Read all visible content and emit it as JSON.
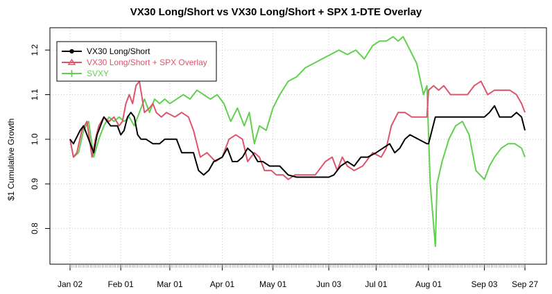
{
  "chart_data": {
    "type": "line",
    "title": "VX30 Long/Short vs VX30 Long/Short + SPX 1-DTE Overlay",
    "xlabel": "",
    "ylabel": "$1 Cumulative Growth",
    "ylim": [
      0.72,
      1.25
    ],
    "yticks": [
      0.8,
      0.9,
      1.0,
      1.1,
      1.2
    ],
    "ytick_labels": [
      "0.8",
      "0.9",
      "1.0",
      "1.1",
      "1.2"
    ],
    "xlim": [
      "2024-01-02",
      "2024-09-27"
    ],
    "xticks": [
      "2024-01-02",
      "2024-02-01",
      "2024-03-01",
      "2024-04-01",
      "2024-05-01",
      "2024-06-03",
      "2024-07-01",
      "2024-08-01",
      "2024-09-03",
      "2024-09-27"
    ],
    "xtick_labels": [
      "Jan 02",
      "Feb 01",
      "Mar 01",
      "Apr 01",
      "May 01",
      "Jun 03",
      "Jul 01",
      "Aug 01",
      "Sep 03",
      "Sep 27"
    ],
    "grid": true,
    "legend_position": "top-left",
    "series": [
      {
        "name": "VX30 Long/Short",
        "color": "#000000",
        "marker": "circle",
        "x": [
          "2024-01-02",
          "2024-01-04",
          "2024-01-08",
          "2024-01-10",
          "2024-01-12",
          "2024-01-16",
          "2024-01-18",
          "2024-01-22",
          "2024-01-24",
          "2024-01-26",
          "2024-01-30",
          "2024-02-01",
          "2024-02-03",
          "2024-02-05",
          "2024-02-07",
          "2024-02-09",
          "2024-02-11",
          "2024-02-13",
          "2024-02-16",
          "2024-02-20",
          "2024-02-24",
          "2024-02-27",
          "2024-03-05",
          "2024-03-08",
          "2024-03-12",
          "2024-03-15",
          "2024-03-18",
          "2024-03-21",
          "2024-03-24",
          "2024-03-27",
          "2024-04-01",
          "2024-04-04",
          "2024-04-07",
          "2024-04-10",
          "2024-04-13",
          "2024-04-16",
          "2024-04-19",
          "2024-04-22",
          "2024-04-25",
          "2024-04-29",
          "2024-05-01",
          "2024-05-05",
          "2024-05-10",
          "2024-05-15",
          "2024-05-20",
          "2024-05-24",
          "2024-05-28",
          "2024-05-31",
          "2024-06-03",
          "2024-06-06",
          "2024-06-10",
          "2024-06-14",
          "2024-06-18",
          "2024-06-22",
          "2024-06-26",
          "2024-07-01",
          "2024-07-05",
          "2024-07-09",
          "2024-07-12",
          "2024-07-15",
          "2024-07-18",
          "2024-07-21",
          "2024-07-31",
          "2024-08-01",
          "2024-08-05",
          "2024-08-12",
          "2024-08-20",
          "2024-08-27",
          "2024-09-03",
          "2024-09-06",
          "2024-09-09",
          "2024-09-12",
          "2024-09-16",
          "2024-09-19",
          "2024-09-22",
          "2024-09-25",
          "2024-09-27"
        ],
        "y": [
          1.0,
          0.99,
          1.02,
          1.03,
          1.01,
          0.97,
          1.01,
          1.05,
          1.04,
          1.03,
          1.03,
          1.01,
          1.02,
          1.05,
          1.06,
          1.05,
          1.01,
          1.0,
          1.0,
          0.99,
          0.99,
          1.0,
          1.0,
          0.97,
          0.97,
          0.97,
          0.93,
          0.92,
          0.93,
          0.95,
          0.96,
          0.98,
          0.95,
          0.95,
          0.96,
          0.98,
          0.97,
          0.95,
          0.95,
          0.94,
          0.94,
          0.94,
          0.92,
          0.915,
          0.915,
          0.915,
          0.915,
          0.915,
          0.915,
          0.92,
          0.94,
          0.95,
          0.94,
          0.96,
          0.96,
          0.97,
          0.98,
          0.99,
          0.97,
          0.98,
          1.0,
          1.01,
          0.99,
          0.99,
          1.05,
          1.05,
          1.05,
          1.05,
          1.05,
          1.06,
          1.075,
          1.05,
          1.05,
          1.05,
          1.06,
          1.05,
          1.02
        ]
      },
      {
        "name": "VX30 Long/Short + SPX Overlay",
        "color": "#DF536B",
        "marker": "triangle",
        "x": [
          "2024-01-02",
          "2024-01-04",
          "2024-01-06",
          "2024-01-09",
          "2024-01-12",
          "2024-01-15",
          "2024-01-17",
          "2024-01-19",
          "2024-01-22",
          "2024-01-25",
          "2024-01-28",
          "2024-01-31",
          "2024-02-02",
          "2024-02-04",
          "2024-02-06",
          "2024-02-08",
          "2024-02-10",
          "2024-02-12",
          "2024-02-15",
          "2024-02-18",
          "2024-02-20",
          "2024-02-22",
          "2024-02-25",
          "2024-02-28",
          "2024-03-04",
          "2024-03-08",
          "2024-03-12",
          "2024-03-15",
          "2024-03-19",
          "2024-03-23",
          "2024-03-28",
          "2024-04-01",
          "2024-04-05",
          "2024-04-09",
          "2024-04-13",
          "2024-04-16",
          "2024-04-20",
          "2024-04-23",
          "2024-04-26",
          "2024-04-30",
          "2024-05-03",
          "2024-05-07",
          "2024-05-10",
          "2024-05-14",
          "2024-05-20",
          "2024-05-26",
          "2024-06-01",
          "2024-06-05",
          "2024-06-08",
          "2024-06-11",
          "2024-06-14",
          "2024-06-18",
          "2024-06-23",
          "2024-06-29",
          "2024-07-04",
          "2024-07-07",
          "2024-07-10",
          "2024-07-14",
          "2024-07-18",
          "2024-07-22",
          "2024-07-31",
          "2024-08-01",
          "2024-08-04",
          "2024-08-07",
          "2024-08-10",
          "2024-08-14",
          "2024-08-19",
          "2024-08-24",
          "2024-08-28",
          "2024-09-01",
          "2024-09-05",
          "2024-09-09",
          "2024-09-13",
          "2024-09-18",
          "2024-09-22",
          "2024-09-25",
          "2024-09-27"
        ],
        "y": [
          1.0,
          0.96,
          0.97,
          1.02,
          1.04,
          0.96,
          1.0,
          1.03,
          1.05,
          1.04,
          1.05,
          1.03,
          1.04,
          1.08,
          1.1,
          1.08,
          1.12,
          1.13,
          1.06,
          1.07,
          1.08,
          1.06,
          1.05,
          1.06,
          1.05,
          1.06,
          1.05,
          1.02,
          0.96,
          0.97,
          0.95,
          0.96,
          1.0,
          1.01,
          1.0,
          0.95,
          0.97,
          0.96,
          0.93,
          0.93,
          0.92,
          0.92,
          0.91,
          0.92,
          0.92,
          0.92,
          0.95,
          0.96,
          0.93,
          0.96,
          0.94,
          0.93,
          0.94,
          0.97,
          0.96,
          0.98,
          1.03,
          1.06,
          1.06,
          1.05,
          1.05,
          1.11,
          1.12,
          1.11,
          1.12,
          1.1,
          1.1,
          1.1,
          1.12,
          1.13,
          1.1,
          1.11,
          1.11,
          1.11,
          1.1,
          1.08,
          1.06
        ]
      },
      {
        "name": "SVXY",
        "color": "#61D04F",
        "marker": "plus",
        "x": [
          "2024-01-02",
          "2024-01-04",
          "2024-01-07",
          "2024-01-10",
          "2024-01-13",
          "2024-01-16",
          "2024-01-19",
          "2024-01-22",
          "2024-01-25",
          "2024-01-28",
          "2024-01-31",
          "2024-02-03",
          "2024-02-06",
          "2024-02-09",
          "2024-02-12",
          "2024-02-15",
          "2024-02-18",
          "2024-02-21",
          "2024-02-24",
          "2024-02-27",
          "2024-03-01",
          "2024-03-05",
          "2024-03-09",
          "2024-03-13",
          "2024-03-17",
          "2024-03-21",
          "2024-03-25",
          "2024-03-29",
          "2024-04-02",
          "2024-04-06",
          "2024-04-10",
          "2024-04-14",
          "2024-04-17",
          "2024-04-20",
          "2024-04-23",
          "2024-04-27",
          "2024-05-01",
          "2024-05-05",
          "2024-05-10",
          "2024-05-15",
          "2024-05-20",
          "2024-05-25",
          "2024-05-30",
          "2024-06-04",
          "2024-06-09",
          "2024-06-14",
          "2024-06-19",
          "2024-06-24",
          "2024-06-29",
          "2024-07-03",
          "2024-07-07",
          "2024-07-11",
          "2024-07-14",
          "2024-07-17",
          "2024-07-21",
          "2024-07-25",
          "2024-07-29",
          "2024-07-31",
          "2024-08-02",
          "2024-08-05",
          "2024-08-06",
          "2024-08-09",
          "2024-08-13",
          "2024-08-17",
          "2024-08-21",
          "2024-08-25",
          "2024-08-29",
          "2024-09-03",
          "2024-09-06",
          "2024-09-09",
          "2024-09-13",
          "2024-09-17",
          "2024-09-21",
          "2024-09-25",
          "2024-09-27"
        ],
        "y": [
          1.0,
          0.96,
          0.97,
          1.02,
          1.04,
          0.96,
          1.0,
          1.03,
          1.05,
          1.04,
          1.05,
          1.04,
          1.05,
          1.03,
          1.06,
          1.09,
          1.06,
          1.09,
          1.08,
          1.09,
          1.08,
          1.09,
          1.1,
          1.09,
          1.11,
          1.1,
          1.09,
          1.1,
          1.08,
          1.04,
          1.07,
          1.03,
          1.06,
          0.99,
          1.03,
          1.02,
          1.07,
          1.1,
          1.13,
          1.14,
          1.16,
          1.17,
          1.18,
          1.19,
          1.2,
          1.19,
          1.2,
          1.18,
          1.21,
          1.22,
          1.22,
          1.23,
          1.22,
          1.23,
          1.2,
          1.17,
          1.1,
          1.12,
          0.9,
          0.76,
          0.9,
          0.95,
          1.0,
          1.03,
          1.04,
          1.01,
          0.93,
          0.91,
          0.94,
          0.96,
          0.98,
          0.99,
          0.99,
          0.98,
          0.96
        ]
      }
    ]
  }
}
